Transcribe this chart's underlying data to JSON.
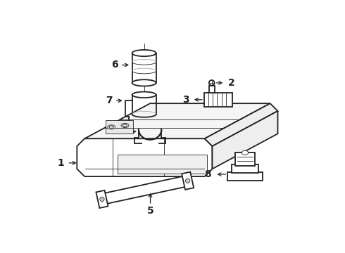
{
  "background_color": "#ffffff",
  "line_color": "#222222",
  "label_color": "#000000",
  "figsize": [
    4.9,
    3.6
  ],
  "dpi": 100,
  "lw_main": 1.3,
  "lw_thin": 0.6
}
